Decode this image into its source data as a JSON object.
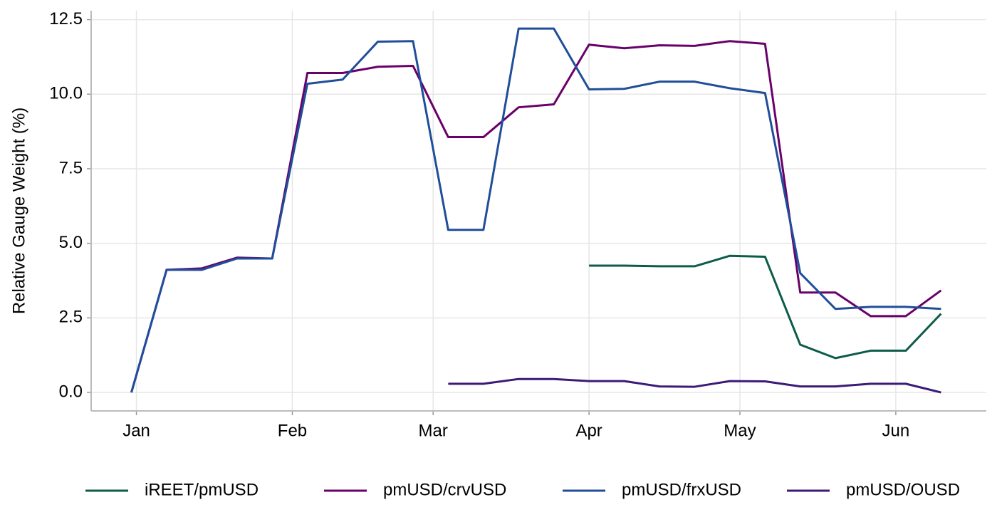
{
  "chart_data": {
    "type": "line",
    "ylabel": "Relative Gauge Weight (%)",
    "x": [
      0,
      7,
      14,
      21,
      28,
      35,
      42,
      49,
      56,
      63,
      70,
      77,
      84,
      91,
      98,
      105,
      112,
      119,
      126,
      133,
      140,
      147,
      154,
      161
    ],
    "xlim": [
      -8,
      170
    ],
    "xticks": [
      {
        "value": 1,
        "label": "Jan"
      },
      {
        "value": 32,
        "label": "Feb"
      },
      {
        "value": 60,
        "label": "Mar"
      },
      {
        "value": 91,
        "label": "Apr"
      },
      {
        "value": 121,
        "label": "May"
      },
      {
        "value": 152,
        "label": "Jun"
      }
    ],
    "ylim": [
      -0.62,
      12.8
    ],
    "yticks": [
      {
        "value": 0,
        "label": "0.0"
      },
      {
        "value": 2.5,
        "label": "2.5"
      },
      {
        "value": 5,
        "label": "5.0"
      },
      {
        "value": 7.5,
        "label": "7.5"
      },
      {
        "value": 10,
        "label": "10.0"
      },
      {
        "value": 12.5,
        "label": "12.5"
      }
    ],
    "grid": true,
    "legend": "bottom",
    "series": [
      {
        "name": "iREET/pmUSD",
        "color": "#0d5c4a",
        "values": [
          null,
          null,
          null,
          null,
          null,
          null,
          null,
          null,
          null,
          null,
          null,
          null,
          null,
          4.25,
          4.25,
          4.23,
          4.23,
          4.58,
          4.55,
          1.6,
          1.15,
          1.4,
          1.4,
          2.64
        ]
      },
      {
        "name": "pmUSD/crvUSD",
        "color": "#6a006a",
        "values": [
          0,
          4.11,
          4.16,
          4.52,
          4.49,
          10.71,
          10.71,
          10.92,
          10.95,
          8.56,
          8.56,
          9.56,
          9.66,
          11.66,
          11.54,
          11.64,
          11.62,
          11.78,
          11.69,
          3.35,
          3.35,
          2.56,
          2.56,
          3.42
        ]
      },
      {
        "name": "pmUSD/frxUSD",
        "color": "#1f4e9a",
        "values": [
          0,
          4.11,
          4.11,
          4.49,
          4.49,
          10.35,
          10.49,
          11.76,
          11.78,
          5.45,
          5.45,
          12.2,
          12.2,
          10.16,
          10.18,
          10.42,
          10.42,
          10.2,
          10.04,
          4.0,
          2.8,
          2.87,
          2.87,
          2.8
        ]
      },
      {
        "name": "pmUSD/OUSD",
        "color": "#3d1a78",
        "values": [
          null,
          null,
          null,
          null,
          null,
          null,
          null,
          null,
          null,
          0.29,
          0.29,
          0.45,
          0.45,
          0.38,
          0.38,
          0.2,
          0.19,
          0.38,
          0.37,
          0.2,
          0.2,
          0.29,
          0.29,
          0
        ]
      }
    ]
  }
}
